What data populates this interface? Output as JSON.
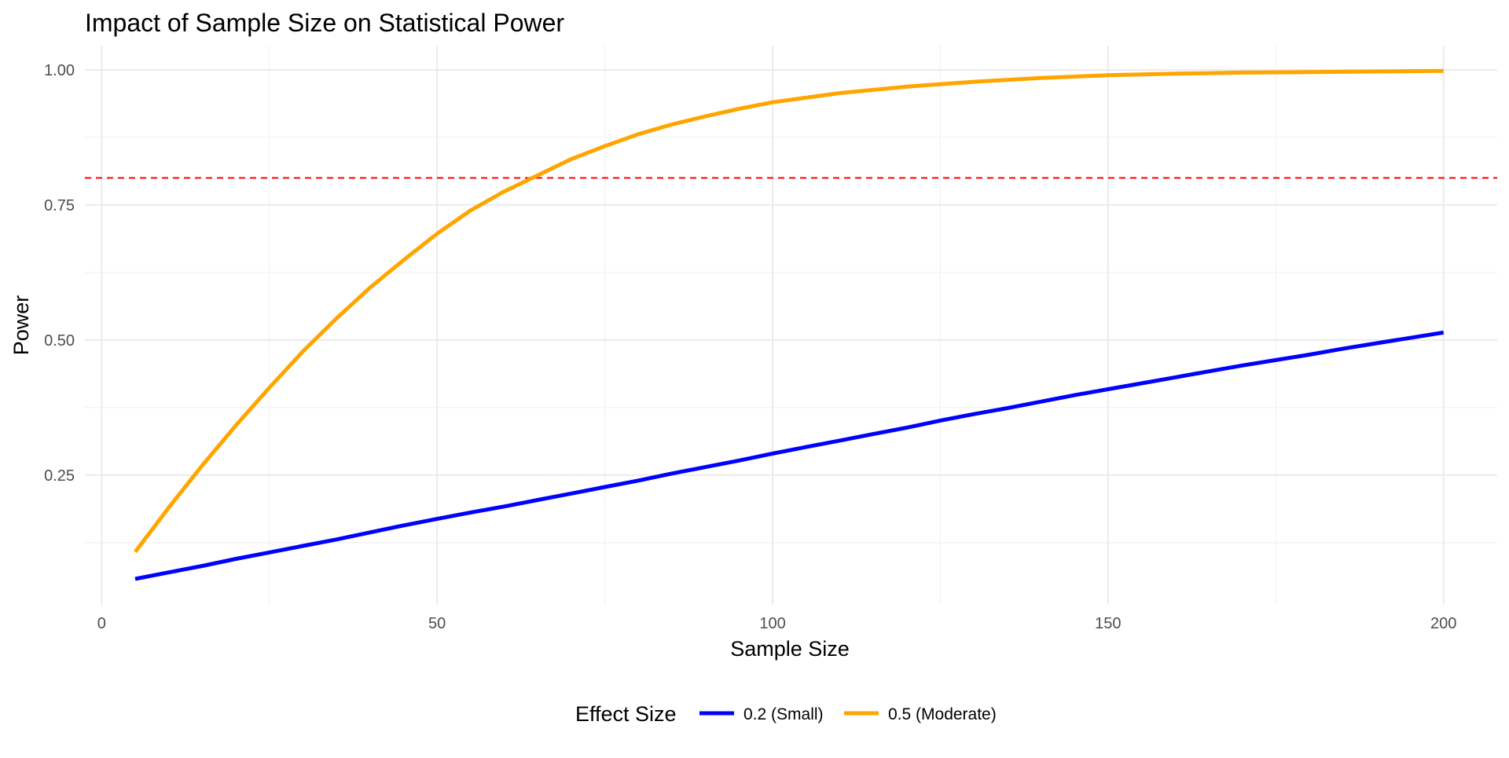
{
  "chart_data": {
    "type": "line",
    "title": "Impact of Sample Size on Statistical Power",
    "xlabel": "Sample Size",
    "ylabel": "Power",
    "xlim": [
      -2.5,
      208
    ],
    "ylim": [
      0.01,
      1.045
    ],
    "x_ticks": [
      0,
      50,
      100,
      150,
      200
    ],
    "x_tick_labels": [
      "0",
      "50",
      "100",
      "150",
      "200"
    ],
    "x_minor_ticks": [
      25,
      75,
      125,
      175
    ],
    "y_ticks": [
      0.25,
      0.5,
      0.75,
      1.0
    ],
    "y_tick_labels": [
      "0.25",
      "0.50",
      "0.75",
      "1.00"
    ],
    "y_minor_ticks": [
      0.125,
      0.375,
      0.625,
      0.875
    ],
    "grid": true,
    "reference_line": {
      "y": 0.8,
      "color": "#ff0000",
      "style": "dashed"
    },
    "legend": {
      "title": "Effect Size",
      "position": "bottom"
    },
    "series": [
      {
        "name": "0.2 (Small)",
        "color": "#0000ff",
        "x": [
          5,
          10,
          15,
          20,
          25,
          30,
          35,
          40,
          45,
          50,
          55,
          60,
          65,
          70,
          75,
          80,
          85,
          90,
          95,
          100,
          105,
          110,
          115,
          120,
          125,
          130,
          135,
          140,
          145,
          150,
          155,
          160,
          165,
          170,
          175,
          180,
          185,
          190,
          195,
          200
        ],
        "y": [
          0.058,
          0.07,
          0.082,
          0.095,
          0.107,
          0.119,
          0.131,
          0.144,
          0.157,
          0.169,
          0.181,
          0.192,
          0.204,
          0.216,
          0.228,
          0.24,
          0.253,
          0.265,
          0.277,
          0.29,
          0.302,
          0.314,
          0.326,
          0.338,
          0.351,
          0.363,
          0.374,
          0.386,
          0.398,
          0.409,
          0.42,
          0.431,
          0.442,
          0.453,
          0.463,
          0.473,
          0.484,
          0.494,
          0.504,
          0.514
        ]
      },
      {
        "name": "0.5 (Moderate)",
        "color": "#ffa500",
        "x": [
          5,
          10,
          15,
          20,
          25,
          30,
          35,
          40,
          45,
          50,
          55,
          60,
          65,
          70,
          75,
          80,
          85,
          90,
          95,
          100,
          110,
          120,
          130,
          140,
          150,
          160,
          170,
          180,
          190,
          200
        ],
        "y": [
          0.108,
          0.19,
          0.268,
          0.342,
          0.412,
          0.479,
          0.54,
          0.597,
          0.648,
          0.697,
          0.74,
          0.775,
          0.805,
          0.835,
          0.859,
          0.881,
          0.899,
          0.914,
          0.928,
          0.94,
          0.957,
          0.969,
          0.978,
          0.985,
          0.99,
          0.993,
          0.995,
          0.996,
          0.997,
          0.998
        ]
      }
    ]
  }
}
